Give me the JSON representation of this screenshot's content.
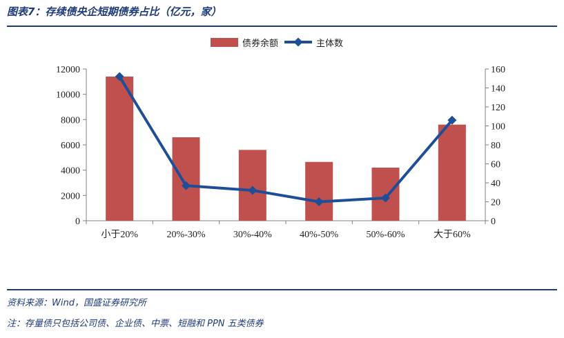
{
  "title": "图表7：存续债央企短期债券占比（亿元，家）",
  "chart_data": {
    "type": "bar+line",
    "categories": [
      "小于20%",
      "20%-30%",
      "30%-40%",
      "40%-50%",
      "50%-60%",
      "大于60%"
    ],
    "series": [
      {
        "name": "债券余额",
        "type": "bar",
        "axis": "left",
        "values": [
          11400,
          6600,
          5600,
          4650,
          4200,
          7600
        ],
        "color": "#C0504D"
      },
      {
        "name": "主体数",
        "type": "line",
        "axis": "right",
        "values": [
          152,
          37,
          32,
          20,
          24,
          106
        ],
        "color": "#1F4E99"
      }
    ],
    "ylim_left": [
      0,
      12000
    ],
    "yticks_left": [
      "0",
      "2000",
      "4000",
      "6000",
      "8000",
      "10000",
      "12000"
    ],
    "ylim_right": [
      0,
      160
    ],
    "yticks_right": [
      "0",
      "20",
      "40",
      "60",
      "80",
      "100",
      "120",
      "140",
      "160"
    ],
    "legend_position": "top",
    "grid": false
  },
  "source": "资料来源：Wind，国盛证券研究所",
  "note": "注：存量债只包括公司债、企业债、中票、短融和 PPN 五类债券"
}
